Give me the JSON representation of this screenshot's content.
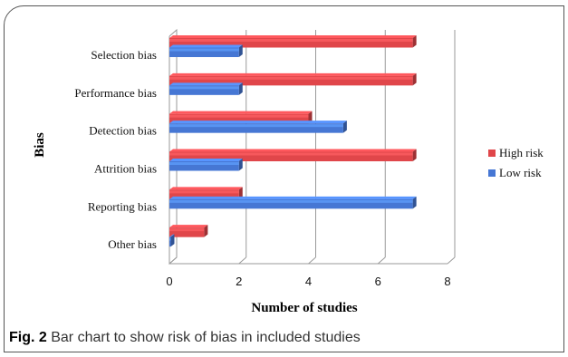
{
  "chart_data": {
    "type": "bar",
    "orientation": "horizontal",
    "style": "3d-clustered",
    "categories": [
      "Selection bias",
      "Performance bias",
      "Detection bias",
      "Attrition bias",
      "Reporting bias",
      "Other bias"
    ],
    "series": [
      {
        "name": "High risk",
        "color": "#e0464a",
        "values": [
          7,
          7,
          4,
          7,
          2,
          1
        ]
      },
      {
        "name": "Low risk",
        "color": "#4677d4",
        "values": [
          2,
          2,
          5,
          2,
          7,
          0
        ]
      }
    ],
    "xlabel": "Number of studies",
    "ylabel": "Bias",
    "xlim": [
      0,
      8
    ],
    "xticks": [
      "0",
      "2",
      "4",
      "6",
      "8"
    ],
    "grid": "vertical",
    "legend_position": "right"
  },
  "caption": {
    "label": "Fig. 2",
    "text": "Bar chart to show risk of bias in included studies"
  }
}
